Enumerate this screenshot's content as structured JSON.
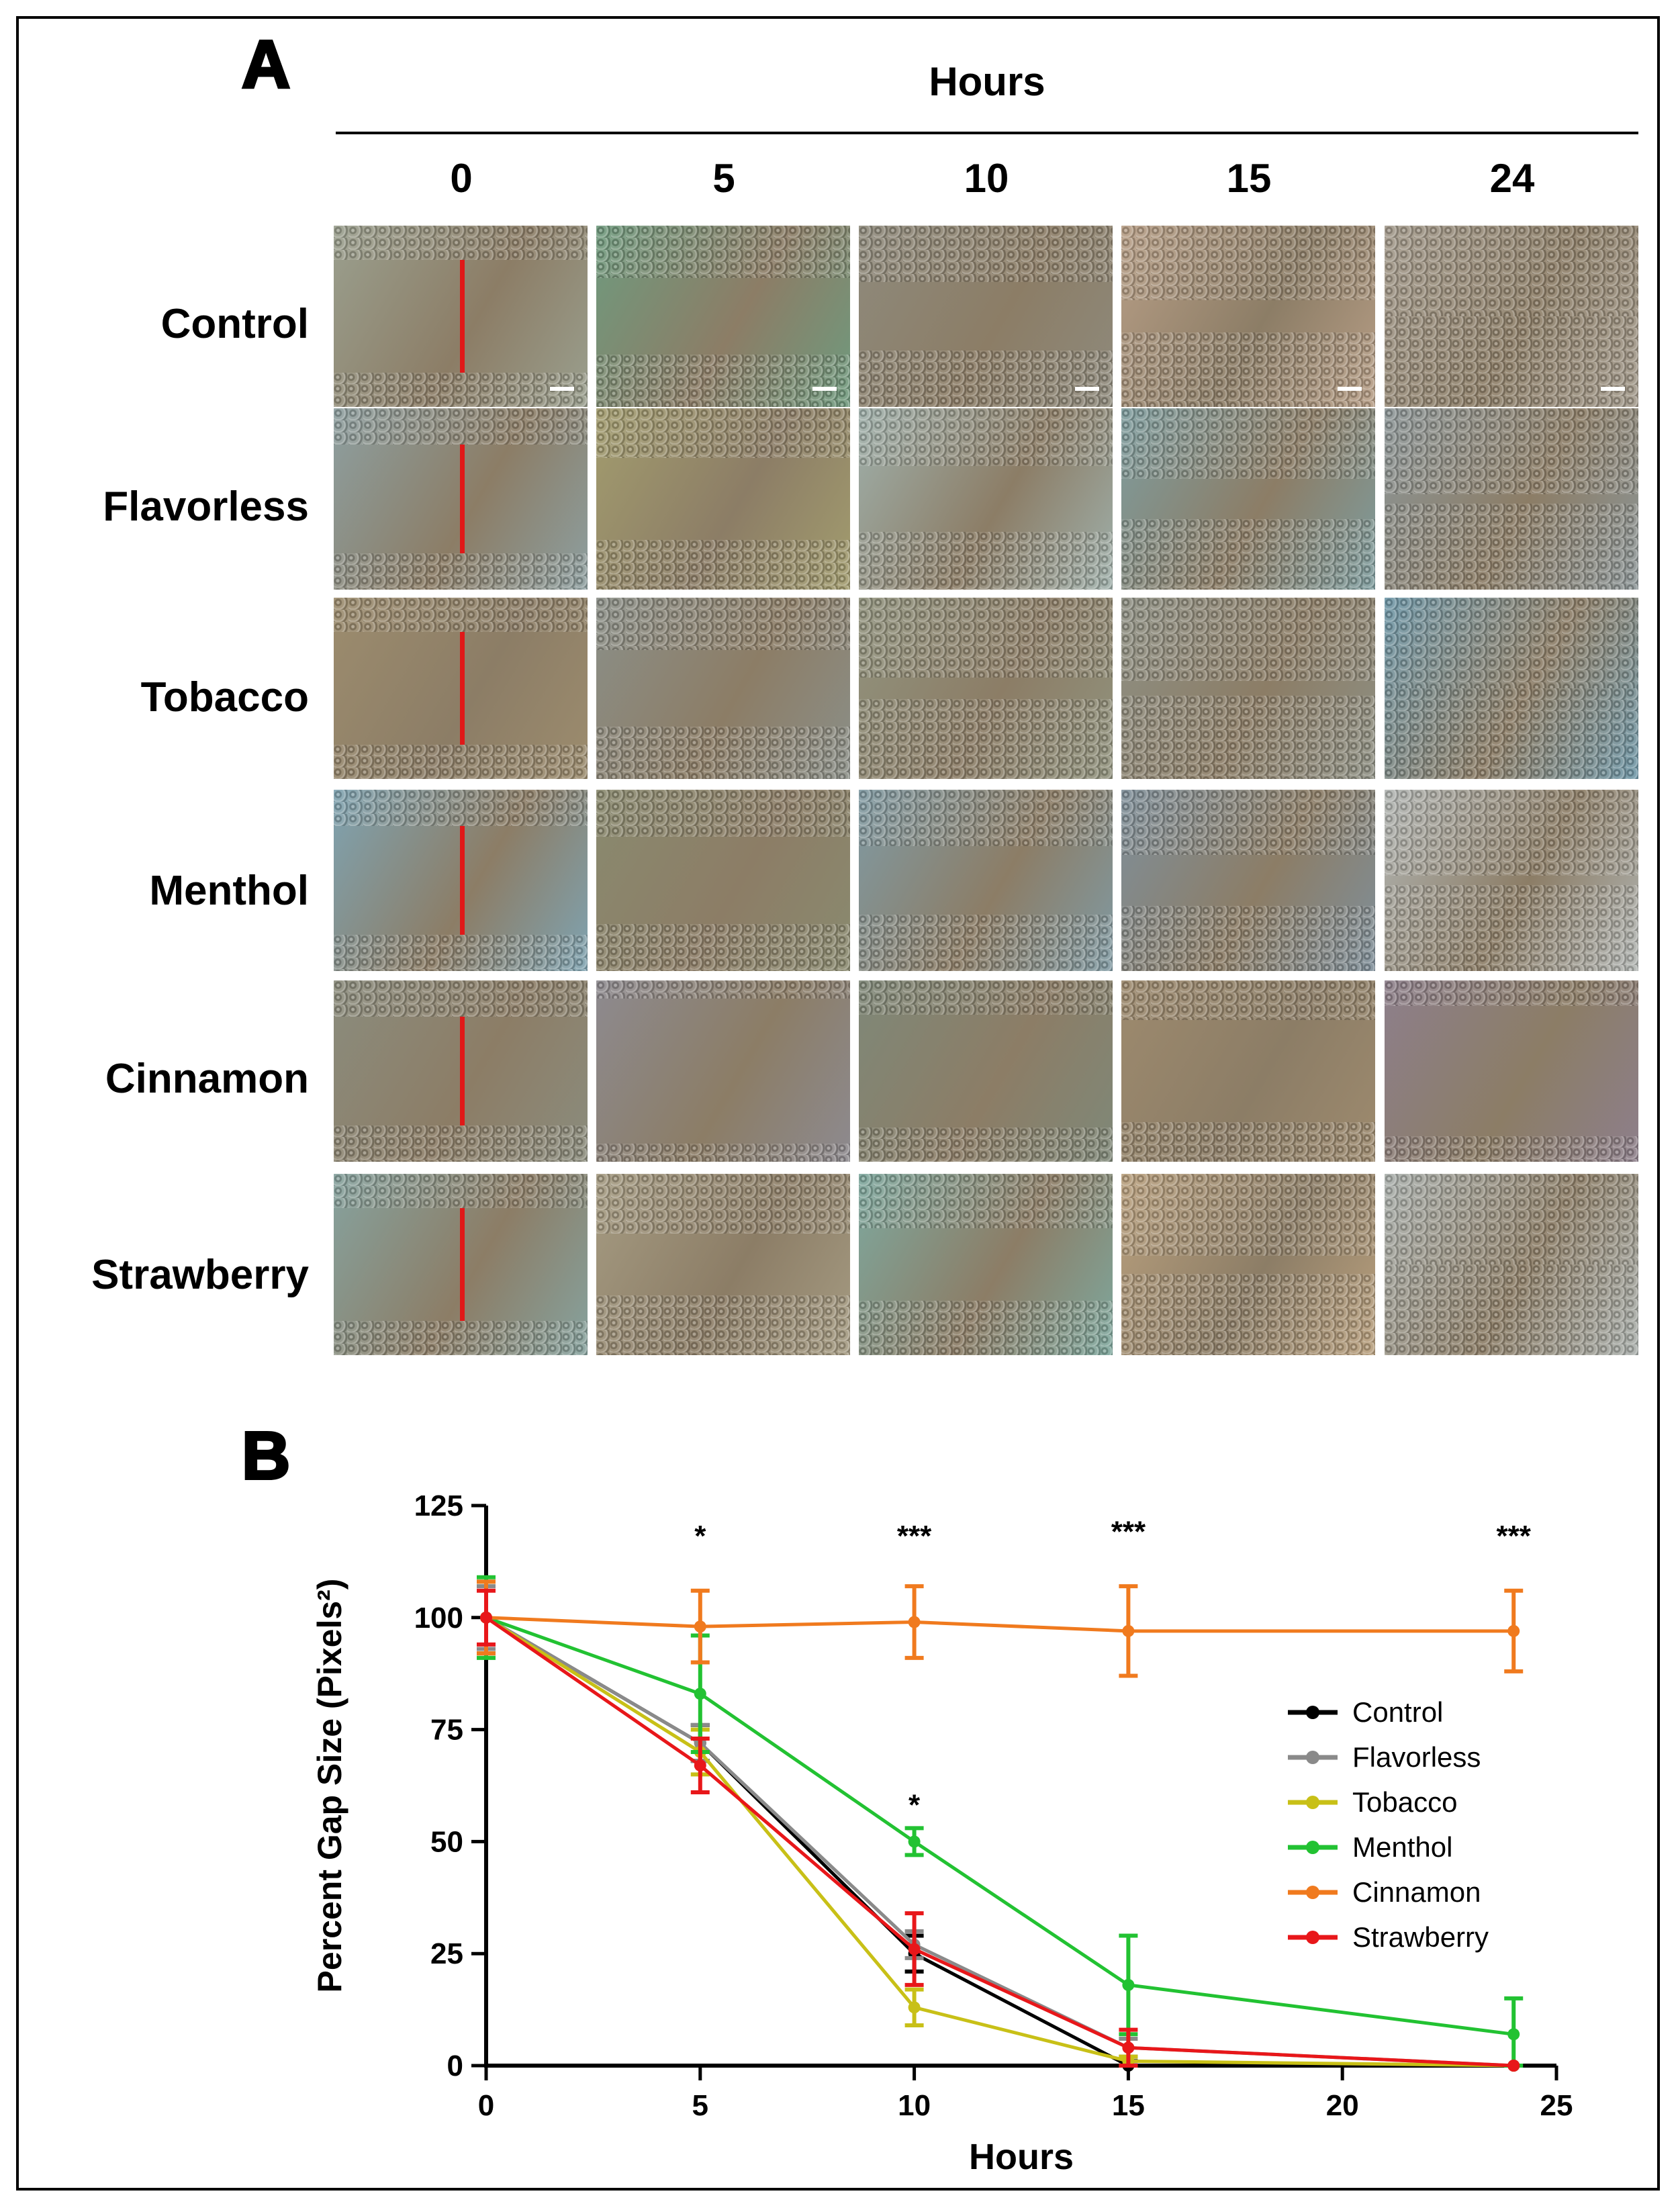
{
  "figure": {
    "panel_a_label": "A",
    "panel_b_label": "B",
    "grid": {
      "hours_title": "Hours",
      "time_points": [
        "0",
        "5",
        "10",
        "15",
        "24"
      ],
      "rows": [
        "Control",
        "Flavorless",
        "Tobacco",
        "Menthol",
        "Cinnamon",
        "Strawberry"
      ],
      "gap_fraction": [
        [
          0.62,
          0.42,
          0.38,
          0.18,
          0.0
        ],
        [
          0.6,
          0.45,
          0.36,
          0.22,
          0.05
        ],
        [
          0.62,
          0.42,
          0.12,
          0.08,
          0.0
        ],
        [
          0.6,
          0.48,
          0.38,
          0.28,
          0.05
        ],
        [
          0.6,
          0.8,
          0.62,
          0.56,
          0.72
        ],
        [
          0.62,
          0.34,
          0.4,
          0.1,
          0.0
        ]
      ],
      "tints": [
        [
          "#9a9f8e",
          "#6f9a7e",
          "#8e8a7c",
          "#b79e86",
          "#a39a8c"
        ],
        [
          "#8d9fa0",
          "#a29c6e",
          "#9fb0ab",
          "#7e9d9f",
          "#8c9698"
        ],
        [
          "#9c8c6e",
          "#8b8f88",
          "#91937e",
          "#8e9084",
          "#6e97a8"
        ],
        [
          "#7fa3b1",
          "#8a8a6f",
          "#809aa3",
          "#7f8f9a",
          "#b2b6b4"
        ],
        [
          "#8b8c7d",
          "#8d8a8f",
          "#7f8878",
          "#9d8a6e",
          "#8d7f8b"
        ],
        [
          "#86a29e",
          "#a59b82",
          "#7ea89e",
          "#b9a07e",
          "#aab0ad"
        ]
      ]
    }
  },
  "chart_data": {
    "type": "line",
    "title": "",
    "xlabel": "Hours",
    "ylabel": "Percent Gap Size (Pixels²)",
    "xlim": [
      0,
      25
    ],
    "ylim": [
      0,
      125
    ],
    "xticks": [
      0,
      5,
      10,
      15,
      20,
      25
    ],
    "yticks": [
      0,
      25,
      50,
      75,
      100,
      125
    ],
    "x": [
      0,
      5,
      10,
      15,
      24
    ],
    "legend_position": "right",
    "series": [
      {
        "name": "Control",
        "color": "#000000",
        "values": [
          100,
          72,
          25,
          0,
          0
        ],
        "err": [
          8,
          4,
          4,
          1,
          0
        ]
      },
      {
        "name": "Flavorless",
        "color": "#8a8a8a",
        "values": [
          100,
          72,
          27,
          4,
          0
        ],
        "err": [
          7,
          4,
          3,
          2,
          0
        ]
      },
      {
        "name": "Tobacco",
        "color": "#c8c017",
        "values": [
          100,
          70,
          13,
          1,
          0
        ],
        "err": [
          8,
          5,
          4,
          1,
          0
        ]
      },
      {
        "name": "Menthol",
        "color": "#22c232",
        "values": [
          100,
          83,
          50,
          18,
          7
        ],
        "err": [
          9,
          13,
          3,
          11,
          8
        ]
      },
      {
        "name": "Cinnamon",
        "color": "#f07a1e",
        "values": [
          100,
          98,
          99,
          97,
          97
        ],
        "err": [
          8,
          8,
          8,
          10,
          9
        ]
      },
      {
        "name": "Strawberry",
        "color": "#e8171a",
        "values": [
          100,
          67,
          26,
          4,
          0
        ],
        "err": [
          6,
          6,
          8,
          4,
          0
        ]
      }
    ],
    "annotations": [
      {
        "text": "*",
        "x": 5,
        "y": 116
      },
      {
        "text": "***",
        "x": 10,
        "y": 116
      },
      {
        "text": "***",
        "x": 15,
        "y": 117
      },
      {
        "text": "***",
        "x": 24,
        "y": 116
      },
      {
        "text": "*",
        "x": 10,
        "y": 56
      }
    ]
  }
}
